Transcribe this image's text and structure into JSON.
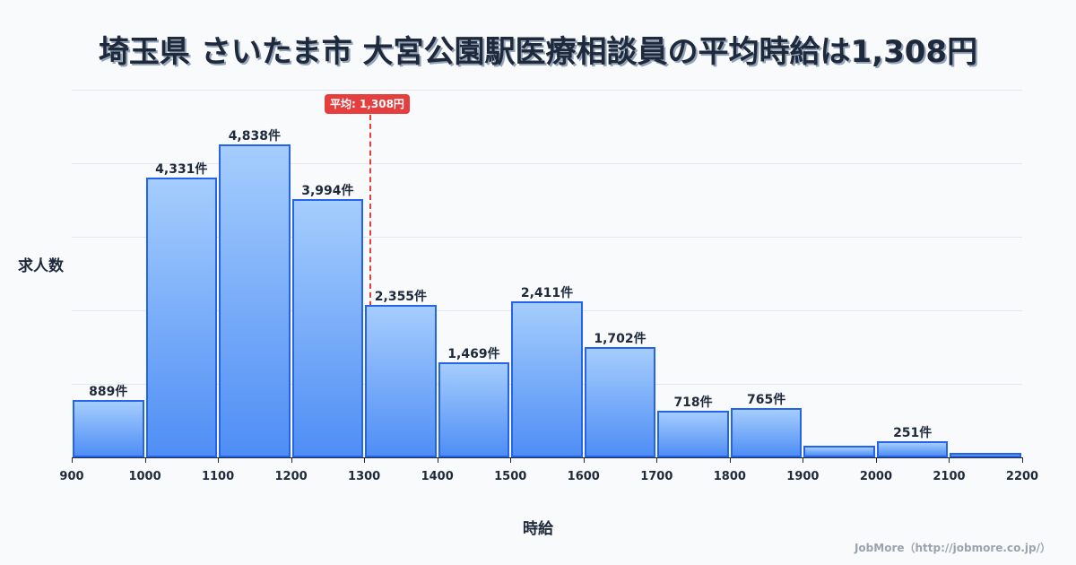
{
  "title": "埼玉県 さいたま市 大宮公園駅医療相談員の平均時給は1,308円",
  "average_badge": "平均: 1,308円",
  "ylabel": "求人数",
  "xlabel": "時給",
  "footer": "JobMore（http://jobmore.co.jp/）",
  "colors": {
    "bar_border": "#2563eb",
    "bar_top": "#a5cdfd",
    "bar_bottom": "#4f8ef5",
    "average_line": "#e53e3e",
    "text": "#1e293b"
  },
  "chart_data": {
    "type": "bar",
    "title": "埼玉県 さいたま市 大宮公園駅医療相談員の平均時給は1,308円",
    "xlabel": "時給",
    "ylabel": "求人数",
    "bins": [
      [
        900,
        1000
      ],
      [
        1000,
        1100
      ],
      [
        1100,
        1200
      ],
      [
        1200,
        1300
      ],
      [
        1300,
        1400
      ],
      [
        1400,
        1500
      ],
      [
        1500,
        1600
      ],
      [
        1600,
        1700
      ],
      [
        1700,
        1800
      ],
      [
        1800,
        1900
      ],
      [
        1900,
        2000
      ],
      [
        2000,
        2100
      ],
      [
        2100,
        2200
      ]
    ],
    "categories": [
      "900-1000",
      "1000-1100",
      "1100-1200",
      "1200-1300",
      "1300-1400",
      "1400-1500",
      "1500-1600",
      "1600-1700",
      "1700-1800",
      "1800-1900",
      "1900-2000",
      "2000-2100",
      "2100-2200"
    ],
    "values": [
      889,
      4331,
      4838,
      3994,
      2355,
      1469,
      2411,
      1702,
      718,
      765,
      180,
      251,
      70
    ],
    "labels": [
      "889件",
      "4,331件",
      "4,838件",
      "3,994件",
      "2,355件",
      "1,469件",
      "2,411件",
      "1,702件",
      "718件",
      "765件",
      "",
      "251件",
      ""
    ],
    "x_ticks": [
      "900",
      "1000",
      "1100",
      "1200",
      "1300",
      "1400",
      "1500",
      "1600",
      "1700",
      "1800",
      "1900",
      "2000",
      "2100",
      "2200"
    ],
    "xlim": [
      900,
      2200
    ],
    "ylim": [
      0,
      5690
    ],
    "average": 1308,
    "average_label": "平均: 1,308円",
    "grid": true,
    "legend": null
  }
}
